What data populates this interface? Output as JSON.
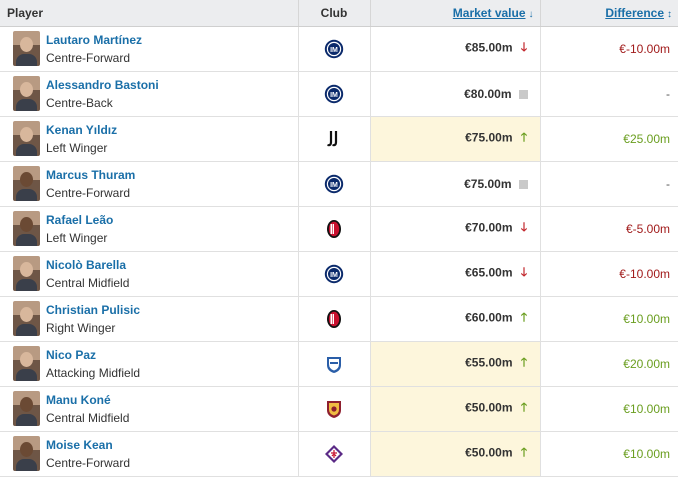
{
  "header": {
    "player": "Player",
    "club": "Club",
    "market_value": "Market value",
    "difference": "Difference",
    "market_value_sort_icon": "arrow-down-sort-icon",
    "difference_sort_icon": "sort-both-icon"
  },
  "colors": {
    "link": "#1a6fa8",
    "highlight": "#fdf6dc",
    "down": "#c2272d",
    "up": "#6a9e1f",
    "neg_text": "#a11b1b"
  },
  "players": [
    {
      "name": "Lautaro Martínez",
      "position": "Centre-Forward",
      "club_icon": "inter-crest-icon",
      "value": "€85.00m",
      "trend": "down",
      "diff": "€-10.00m",
      "diff_kind": "neg",
      "highlight": false,
      "dark": false
    },
    {
      "name": "Alessandro Bastoni",
      "position": "Centre-Back",
      "club_icon": "inter-crest-icon",
      "value": "€80.00m",
      "trend": "same",
      "diff": "-",
      "diff_kind": "neutral",
      "highlight": false,
      "dark": false
    },
    {
      "name": "Kenan Yıldız",
      "position": "Left Winger",
      "club_icon": "juventus-crest-icon",
      "value": "€75.00m",
      "trend": "up",
      "diff": "€25.00m",
      "diff_kind": "pos",
      "highlight": true,
      "dark": false
    },
    {
      "name": "Marcus Thuram",
      "position": "Centre-Forward",
      "club_icon": "inter-crest-icon",
      "value": "€75.00m",
      "trend": "same",
      "diff": "-",
      "diff_kind": "neutral",
      "highlight": false,
      "dark": true
    },
    {
      "name": "Rafael Leão",
      "position": "Left Winger",
      "club_icon": "milan-crest-icon",
      "value": "€70.00m",
      "trend": "down",
      "diff": "€-5.00m",
      "diff_kind": "neg",
      "highlight": false,
      "dark": true
    },
    {
      "name": "Nicolò Barella",
      "position": "Central Midfield",
      "club_icon": "inter-crest-icon",
      "value": "€65.00m",
      "trend": "down",
      "diff": "€-10.00m",
      "diff_kind": "neg",
      "highlight": false,
      "dark": false
    },
    {
      "name": "Christian Pulisic",
      "position": "Right Winger",
      "club_icon": "milan-crest-icon",
      "value": "€60.00m",
      "trend": "up",
      "diff": "€10.00m",
      "diff_kind": "pos",
      "highlight": false,
      "dark": false
    },
    {
      "name": "Nico Paz",
      "position": "Attacking Midfield",
      "club_icon": "como-crest-icon",
      "value": "€55.00m",
      "trend": "up",
      "diff": "€20.00m",
      "diff_kind": "pos",
      "highlight": true,
      "dark": false
    },
    {
      "name": "Manu Koné",
      "position": "Central Midfield",
      "club_icon": "roma-crest-icon",
      "value": "€50.00m",
      "trend": "up",
      "diff": "€10.00m",
      "diff_kind": "pos",
      "highlight": true,
      "dark": true
    },
    {
      "name": "Moise Kean",
      "position": "Centre-Forward",
      "club_icon": "fiorentina-crest-icon",
      "value": "€50.00m",
      "trend": "up",
      "diff": "€10.00m",
      "diff_kind": "pos",
      "highlight": true,
      "dark": true
    }
  ]
}
